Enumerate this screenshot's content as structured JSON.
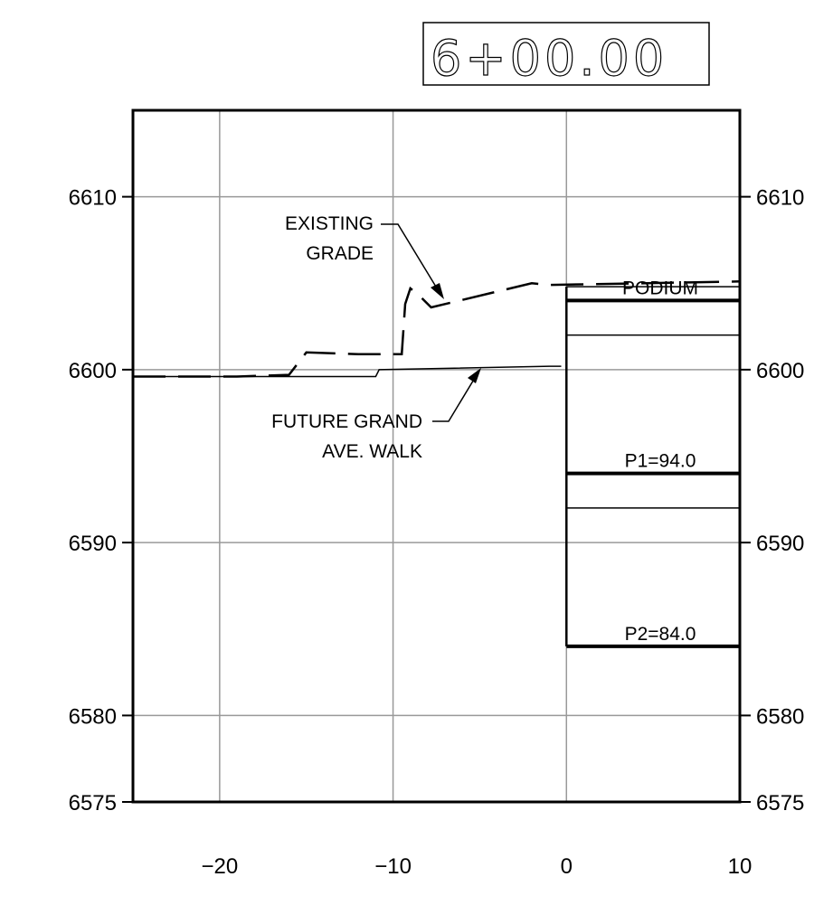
{
  "station_label": "6+00.00",
  "y_ticks": [
    {
      "value": 6610,
      "label": "6610"
    },
    {
      "value": 6600,
      "label": "6600"
    },
    {
      "value": 6590,
      "label": "6590"
    },
    {
      "value": 6580,
      "label": "6580"
    },
    {
      "value": 6575,
      "label": "6575"
    }
  ],
  "x_ticks": [
    {
      "value": -20,
      "label": "−20"
    },
    {
      "value": -10,
      "label": "−10"
    },
    {
      "value": 0,
      "label": "0"
    },
    {
      "value": 10,
      "label": "10"
    }
  ],
  "axes": {
    "xlim": [
      -25,
      10
    ],
    "ylim": [
      6575,
      6615
    ]
  },
  "existing_grade": [
    [
      -25,
      6599.6
    ],
    [
      -19,
      6599.6
    ],
    [
      -16,
      6599.7
    ],
    [
      -15,
      6601.0
    ],
    [
      -12,
      6600.9
    ],
    [
      -9.5,
      6600.9
    ],
    [
      -9.3,
      6603.8
    ],
    [
      -9,
      6604.7
    ],
    [
      -8.5,
      6604.3
    ],
    [
      -7.8,
      6603.6
    ],
    [
      -2,
      6605.0
    ],
    [
      -1,
      6604.9
    ],
    [
      10,
      6605.1
    ]
  ],
  "future_walk": [
    [
      -25,
      6599.6
    ],
    [
      -11,
      6599.6
    ],
    [
      -10.8,
      6600.0
    ],
    [
      -1,
      6600.2
    ],
    [
      -0.3,
      6600.2
    ]
  ],
  "levels": [
    {
      "name": "PODIUM",
      "label": "PODIUM",
      "elevation": 6604.0,
      "heavy": true
    },
    {
      "name": "PODIUM-TOP",
      "label": "",
      "elevation": 6604.8,
      "heavy": false
    },
    {
      "name": "PODIUM-SLAB",
      "label": "",
      "elevation": 6602.0,
      "heavy": false
    },
    {
      "name": "P1",
      "label": "P1=94.0",
      "elevation": 6594.0,
      "heavy": true
    },
    {
      "name": "P1-SLAB",
      "label": "",
      "elevation": 6592.0,
      "heavy": false
    },
    {
      "name": "P2",
      "label": "P2=84.0",
      "elevation": 6584.0,
      "heavy": true
    }
  ],
  "annotations": {
    "existing_grade": [
      "EXISTING",
      "GRADE"
    ],
    "future_walk": [
      "FUTURE GRAND",
      "AVE. WALK"
    ]
  }
}
